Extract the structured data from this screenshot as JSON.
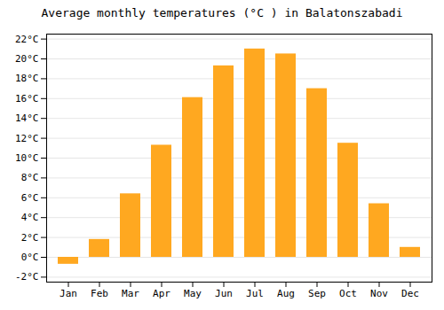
{
  "chart_data": {
    "type": "bar",
    "title": "Average monthly temperatures (°C ) in Balatonszabadi",
    "categories": [
      "Jan",
      "Feb",
      "Mar",
      "Apr",
      "May",
      "Jun",
      "Jul",
      "Aug",
      "Sep",
      "Oct",
      "Nov",
      "Dec"
    ],
    "values": [
      -0.7,
      1.8,
      6.4,
      11.3,
      16.1,
      19.3,
      21.0,
      20.5,
      17.0,
      11.5,
      5.4,
      1.0
    ],
    "color": "#FFA820",
    "ylim": [
      -2.5,
      22.5
    ],
    "yticks": [
      {
        "value": -2,
        "label": "-2°C"
      },
      {
        "value": 0,
        "label": "0°C"
      },
      {
        "value": 2,
        "label": "2°C"
      },
      {
        "value": 4,
        "label": "4°C"
      },
      {
        "value": 6,
        "label": "6°C"
      },
      {
        "value": 8,
        "label": "8°C"
      },
      {
        "value": 10,
        "label": "10°C"
      },
      {
        "value": 12,
        "label": "12°C"
      },
      {
        "value": 14,
        "label": "14°C"
      },
      {
        "value": 16,
        "label": "16°C"
      },
      {
        "value": 18,
        "label": "18°C"
      },
      {
        "value": 20,
        "label": "20°C"
      },
      {
        "value": 22,
        "label": "22°C"
      }
    ],
    "grid": true
  }
}
